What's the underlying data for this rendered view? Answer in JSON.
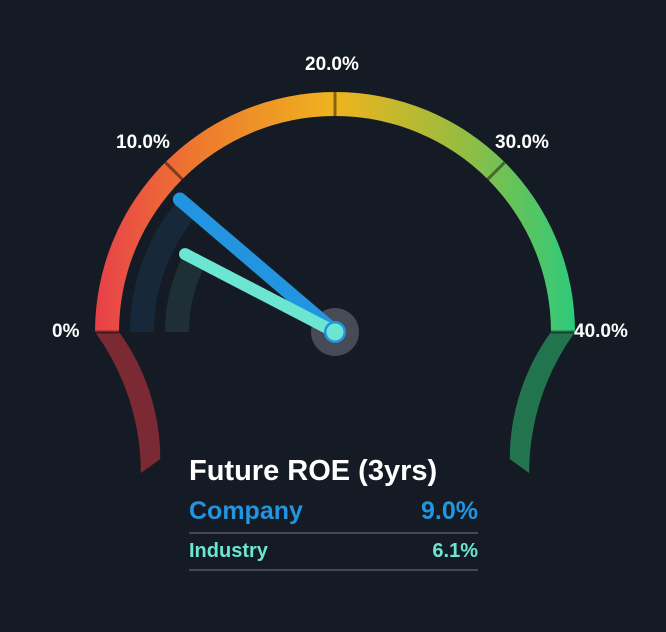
{
  "chart_data": {
    "type": "gauge",
    "title": "Future ROE (3yrs)",
    "min": 0,
    "max": 40,
    "unit": "%",
    "ticks": [
      0,
      10,
      20,
      30,
      40
    ],
    "tick_labels": [
      "0%",
      "10.0%",
      "20.0%",
      "30.0%",
      "40.0%"
    ],
    "series": [
      {
        "name": "Company",
        "value": 9.0,
        "label": "9.0%",
        "color": "#2394df"
      },
      {
        "name": "Industry",
        "value": 6.1,
        "label": "6.1%",
        "color": "#6ce5d2"
      }
    ],
    "gradient": [
      "#e8404a",
      "#ee8a2a",
      "#efb41e",
      "#9cbc3d",
      "#2dca7b"
    ],
    "lower_left_color": "#7b2a33",
    "lower_right_color": "#22744f"
  },
  "labels": {
    "t0": "0%",
    "t10": "10.0%",
    "t20": "20.0%",
    "t30": "30.0%",
    "t40": "40.0%"
  },
  "legend": {
    "title": "Future ROE (3yrs)",
    "company_label": "Company",
    "company_value": "9.0%",
    "industry_label": "Industry",
    "industry_value": "6.1%"
  }
}
